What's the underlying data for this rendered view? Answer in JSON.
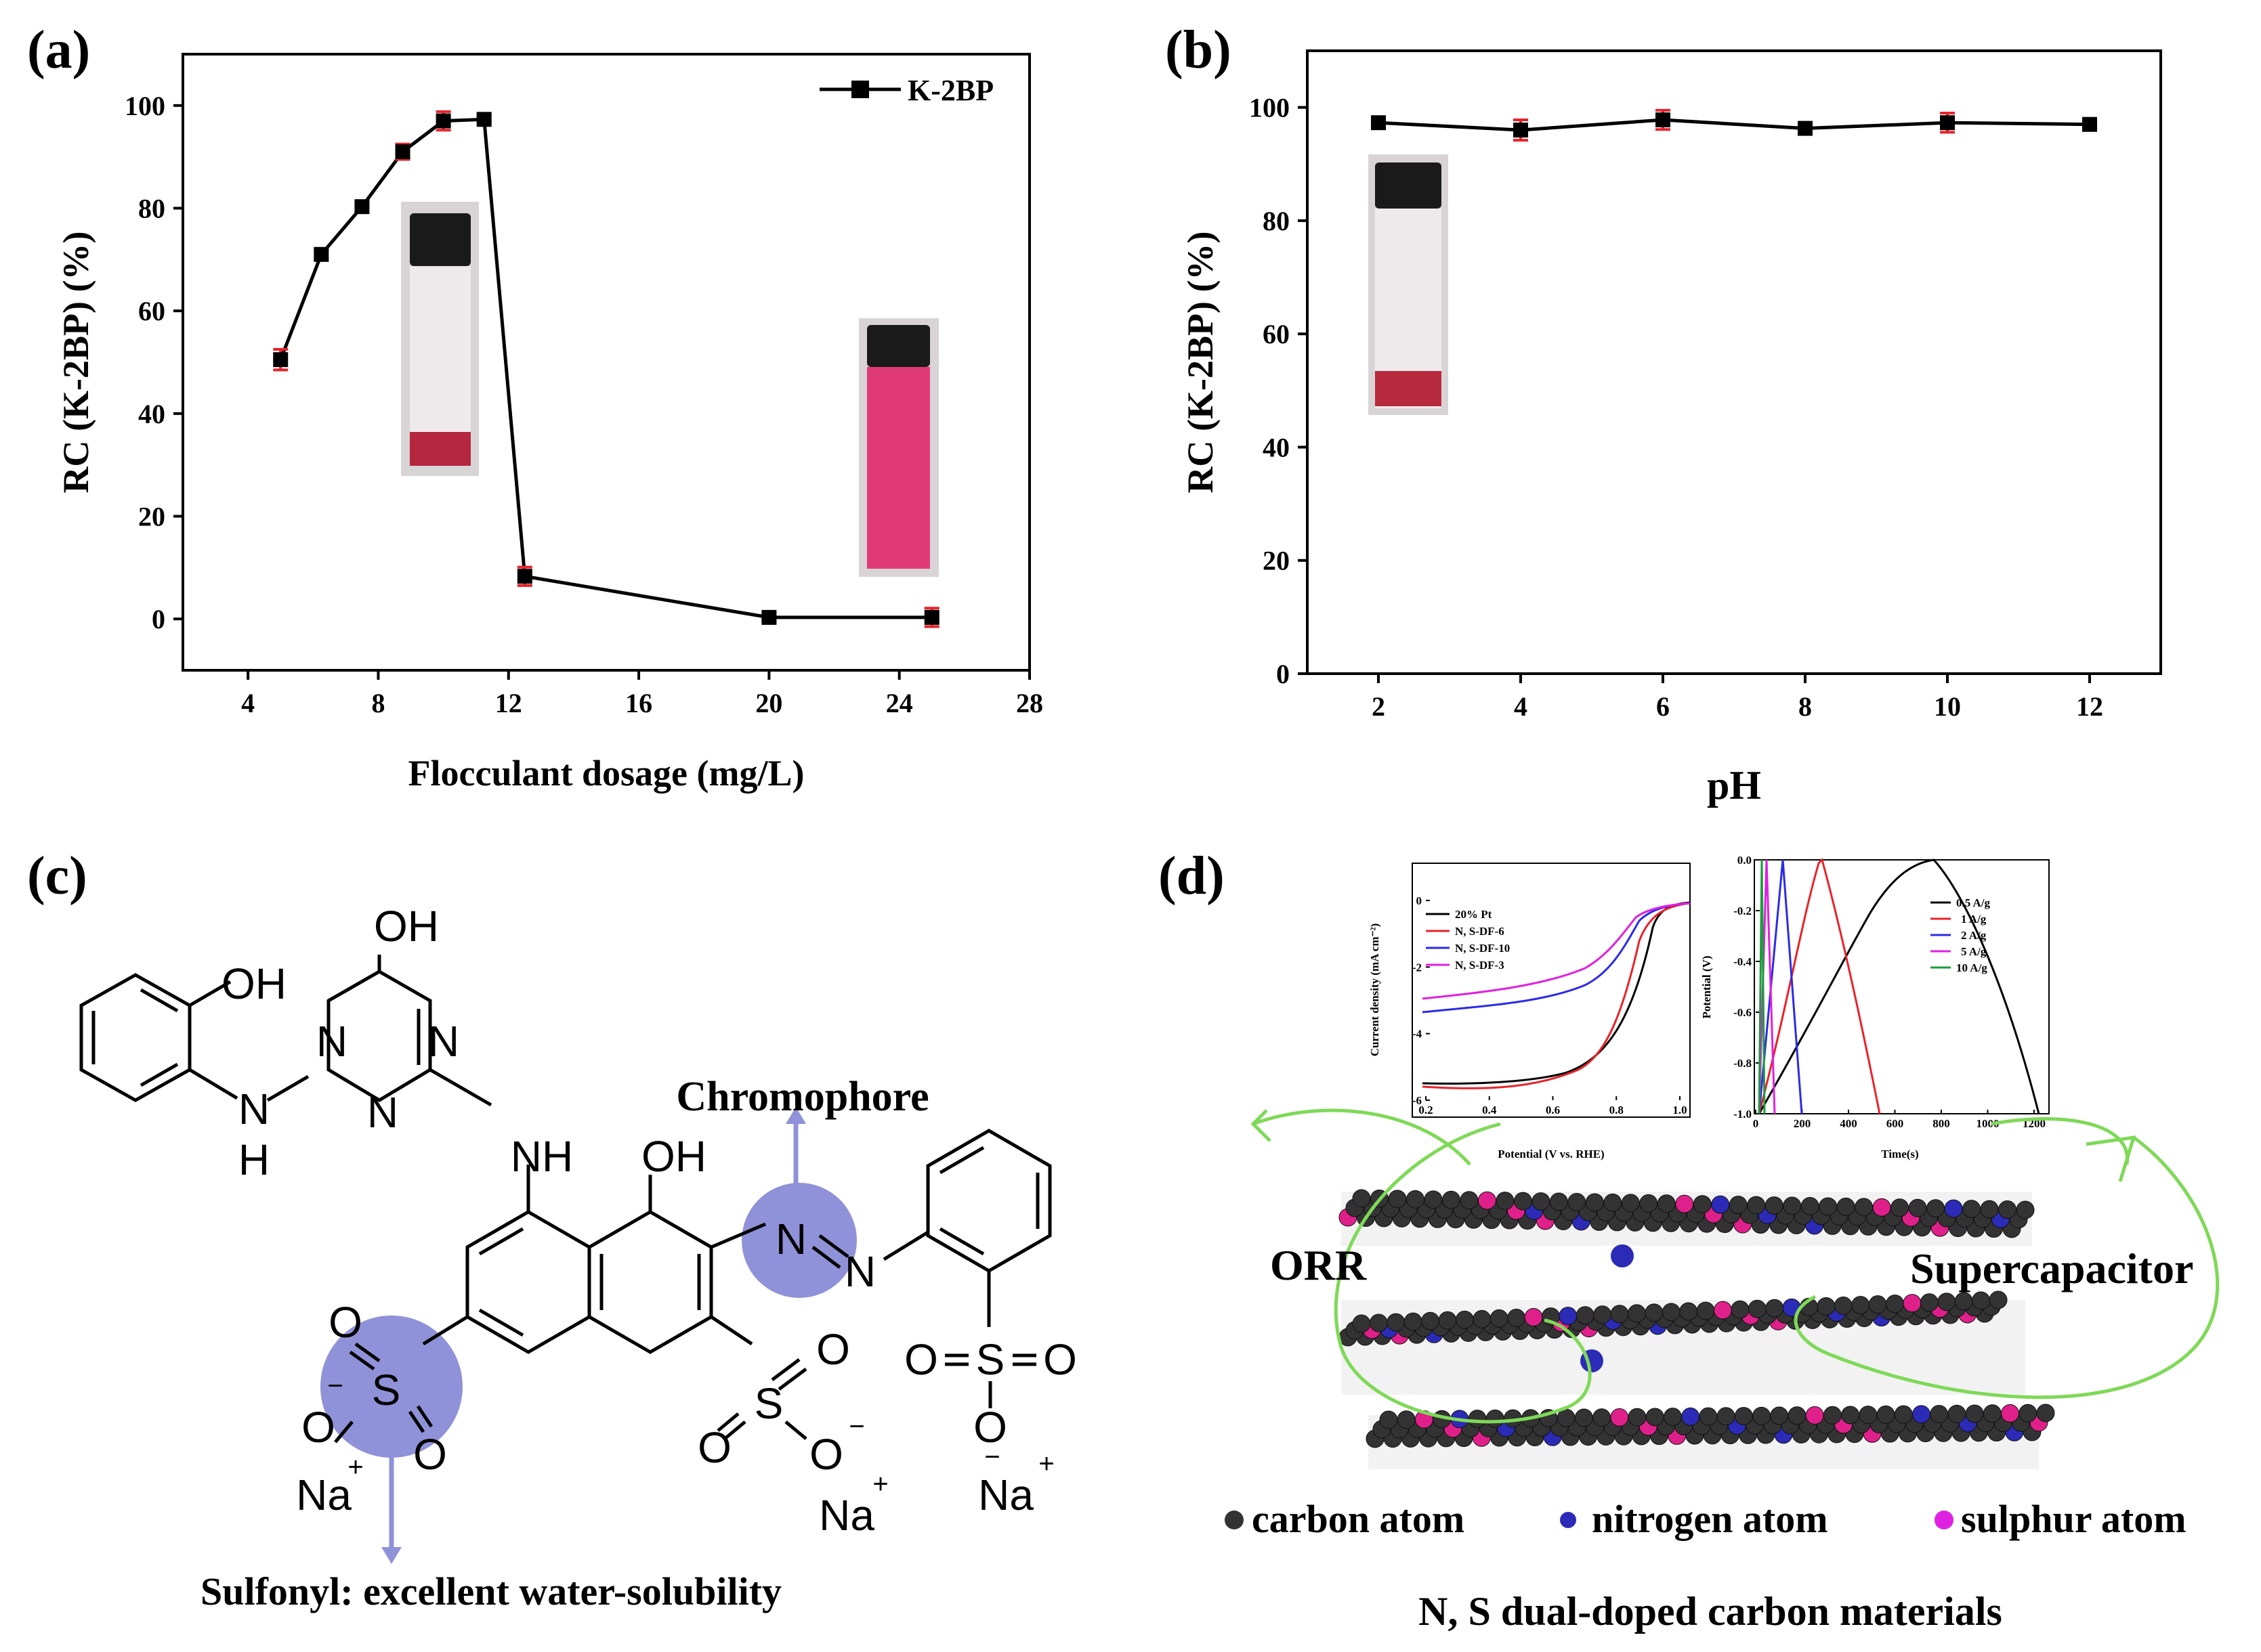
{
  "colors": {
    "line": "#000000",
    "errorbar": "#e8232a",
    "marker": "#000000",
    "highlight": "#8f92d8",
    "arrow_blue": "#8f92d8",
    "arrow_green": "#7ed957",
    "carbon": "#333333",
    "nitrogen": "#2b2bb8",
    "sulphur": "#e0208a"
  },
  "chart_data": [
    {
      "panel": "(a)",
      "type": "line",
      "x": [
        5,
        6.25,
        7.5,
        8.75,
        10,
        11.25,
        12.5,
        20,
        25
      ],
      "values": [
        50.5,
        71,
        80.3,
        91,
        97,
        97.3,
        8.3,
        0.3,
        0.3
      ],
      "errors": [
        2,
        1,
        1,
        1.5,
        1.8,
        0.5,
        1.8,
        0.6,
        1.8
      ],
      "xlim": [
        2,
        28
      ],
      "ylim": [
        -10,
        110
      ],
      "xticks": [
        "4",
        "8",
        "12",
        "16",
        "20",
        "24",
        "28"
      ],
      "yticks": [
        "0",
        "20",
        "40",
        "60",
        "80",
        "100"
      ],
      "xlabel": "Flocculant dosage (mg/L)",
      "ylabel": "RC (K-2BP) (%)",
      "legend": "K-2BP",
      "legend_position": "top-right"
    },
    {
      "panel": "(b)",
      "type": "line",
      "x": [
        2,
        4,
        6,
        8,
        10,
        12
      ],
      "values": [
        97.3,
        96,
        97.8,
        96.3,
        97.3,
        97
      ],
      "errors": [
        0.6,
        1.8,
        1.7,
        0.8,
        1.7,
        0.8
      ],
      "xlim": [
        1,
        13
      ],
      "ylim": [
        0,
        110
      ],
      "xticks": [
        "2",
        "4",
        "6",
        "8",
        "10",
        "12"
      ],
      "yticks": [
        "0",
        "20",
        "40",
        "60",
        "80",
        "100"
      ],
      "xlabel": "pH",
      "ylabel": "RC (K-2BP) (%)"
    },
    {
      "panel": "(d) inset ORR",
      "type": "line",
      "xlabel": "Potential (V vs. RHE)",
      "ylabel": "Current density (mA cm⁻²)",
      "xticks": [
        "0.2",
        "0.4",
        "0.6",
        "0.8",
        "1.0"
      ],
      "yticks": [
        "0",
        "-2",
        "-4",
        "-6"
      ],
      "legend": [
        "20% Pt",
        "N, S-DF-6",
        "N, S-DF-10",
        "N, S-DF-3"
      ]
    },
    {
      "panel": "(d) inset GCD",
      "type": "line",
      "xlabel": "Time(s)",
      "ylabel": "Potential (V)",
      "xticks": [
        "0",
        "200",
        "400",
        "600",
        "800",
        "1000",
        "1200"
      ],
      "yticks": [
        "0.0",
        "-0.2",
        "-0.4",
        "-0.6",
        "-0.8",
        "-1.0"
      ],
      "legend": [
        "0.5 A/g",
        "1 A/g",
        "2 A/g",
        "5 A/g",
        "10 A/g"
      ]
    }
  ],
  "panel_c": {
    "label": "(c)",
    "atoms": {
      "OH_triazine": "OH",
      "OH_phenol": "OH",
      "OH_naph": "OH",
      "N": "N",
      "H": "H",
      "NH": "NH",
      "O": "O",
      "S": "S",
      "Na": "Na",
      "plus": "+",
      "minus": "−"
    },
    "chromophore": "Chromophore",
    "sulfonyl_note": "Sulfonyl: excellent water-solubility"
  },
  "panel_d": {
    "label": "(d)",
    "orr": "ORR",
    "supercap": "Supercapacitor",
    "legend": {
      "carbon": "carbon atom",
      "nitrogen": "nitrogen atom",
      "sulphur": "sulphur atom"
    },
    "caption": "N, S dual-doped carbon materials"
  }
}
